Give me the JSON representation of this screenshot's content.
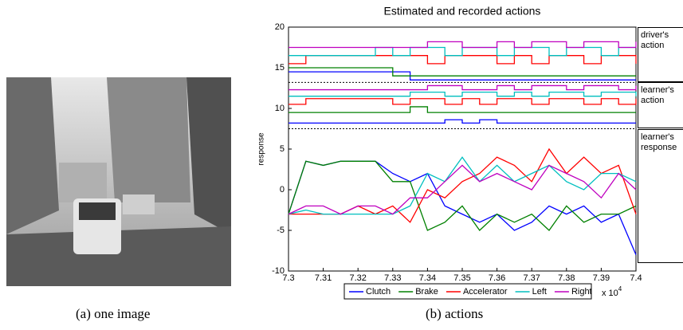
{
  "captions": {
    "left": "(a) one image",
    "right": "(b) actions"
  },
  "chart_data": {
    "type": "line",
    "title": "Estimated and recorded actions",
    "ylabel": "response",
    "x_offset_label": "x 10",
    "x_offset_exp": "4",
    "xlim": [
      73000,
      74000
    ],
    "xticks": [
      {
        "value": 73000,
        "label": "7.3"
      },
      {
        "value": 73100,
        "label": "7.31"
      },
      {
        "value": 73200,
        "label": "7.32"
      },
      {
        "value": 73300,
        "label": "7.33"
      },
      {
        "value": 73400,
        "label": "7.34"
      },
      {
        "value": 73500,
        "label": "7.35"
      },
      {
        "value": 73600,
        "label": "7.36"
      },
      {
        "value": 73700,
        "label": "7.37"
      },
      {
        "value": 73800,
        "label": "7.38"
      },
      {
        "value": 73900,
        "label": "7.39"
      },
      {
        "value": 74000,
        "label": "7.4"
      }
    ],
    "ylim": [
      -10,
      20
    ],
    "yticks": [
      -10,
      -5,
      0,
      5,
      10,
      15,
      20
    ],
    "annotations": [
      "driver's action",
      "learner's action",
      "learner's response"
    ],
    "x": [
      73000,
      73050,
      73100,
      73150,
      73200,
      73250,
      73300,
      73350,
      73400,
      73450,
      73500,
      73550,
      73600,
      73650,
      73700,
      73750,
      73800,
      73850,
      73900,
      73950,
      74000
    ],
    "series": [
      {
        "name": "Clutch",
        "color": "#0000ff",
        "values": [
          -3,
          3.5,
          3,
          3.5,
          3.5,
          3.5,
          2,
          1,
          2,
          -2,
          -3,
          -4,
          -3,
          -5,
          -4,
          -2,
          -3,
          -2,
          -4,
          -3,
          -8
        ]
      },
      {
        "name": "Brake",
        "color": "#008000",
        "values": [
          -3,
          3.5,
          3,
          3.5,
          3.5,
          3.5,
          1,
          1,
          -5,
          -4,
          -2,
          -5,
          -3,
          -4,
          -3,
          -5,
          -2,
          -4,
          -3,
          -3,
          -2
        ]
      },
      {
        "name": "Accelerator",
        "color": "#ff0000",
        "values": [
          -3,
          -3,
          -3,
          -3,
          -2,
          -3,
          -2,
          -4,
          0,
          -1,
          1,
          2,
          4,
          3,
          1,
          5,
          2,
          4,
          2,
          3,
          -3
        ]
      },
      {
        "name": "Left",
        "color": "#00bfbf",
        "values": [
          -3,
          -2.5,
          -3,
          -3,
          -3,
          -3,
          -3,
          -2,
          2,
          1,
          4,
          1,
          3,
          1,
          2,
          3,
          1,
          0,
          2,
          2,
          1
        ]
      },
      {
        "name": "Right",
        "color": "#bf00bf",
        "values": [
          -3,
          -2,
          -2,
          -3,
          -2,
          -2,
          -3,
          -1,
          -1,
          1,
          3,
          1,
          2,
          1,
          0,
          3,
          2,
          1,
          -1,
          2,
          0
        ]
      }
    ],
    "driver_action": [
      {
        "color": "#0000ff",
        "values": [
          14.5,
          14.5,
          14.5,
          14.5,
          14.5,
          14.5,
          14.5,
          13.5,
          13.5,
          13.5,
          13.5,
          13.5,
          13.5,
          13.5,
          13.5,
          13.5,
          13.5,
          13.5,
          13.5,
          13.5,
          13.5
        ]
      },
      {
        "color": "#008000",
        "values": [
          15,
          15,
          15,
          15,
          15,
          15,
          14,
          14,
          14,
          14,
          14,
          14,
          14,
          14,
          14,
          14,
          14,
          14,
          14,
          14,
          14
        ]
      },
      {
        "color": "#ff0000",
        "values": [
          15.5,
          16.5,
          16.5,
          16.5,
          16.5,
          16.5,
          16.5,
          16.5,
          15.5,
          16.5,
          16.5,
          16.5,
          15.5,
          16.5,
          15.5,
          16.5,
          16.5,
          15.5,
          16.5,
          16.5,
          15.5
        ]
      },
      {
        "color": "#00bfbf",
        "values": [
          16.5,
          16.5,
          16.5,
          16.5,
          16.5,
          17.5,
          16.5,
          17.5,
          17.5,
          16.5,
          17.5,
          17.5,
          16.5,
          17.5,
          17.5,
          16.5,
          17.5,
          17.5,
          16.5,
          17.5,
          17.5
        ]
      },
      {
        "color": "#bf00bf",
        "values": [
          17.5,
          17.5,
          17.5,
          17.5,
          17.5,
          17.5,
          17.5,
          17.5,
          18.2,
          18.2,
          17.5,
          17.5,
          18.2,
          17.5,
          18.2,
          18.2,
          17.5,
          18.2,
          18.2,
          17.5,
          18.2
        ]
      }
    ],
    "learner_action": [
      {
        "color": "#0000ff",
        "values": [
          8.2,
          8.2,
          8.2,
          8.2,
          8.2,
          8.2,
          8.2,
          8.2,
          8.2,
          8.6,
          8.2,
          8.6,
          8.2,
          8.2,
          8.2,
          8.2,
          8.2,
          8.2,
          8.2,
          8.2,
          8.2
        ]
      },
      {
        "color": "#008000",
        "values": [
          9.5,
          9.5,
          9.5,
          9.5,
          9.5,
          9.5,
          9.5,
          10.2,
          9.5,
          9.5,
          9.5,
          9.5,
          9.5,
          9.5,
          9.5,
          9.5,
          9.5,
          9.5,
          9.5,
          9.5,
          9.5
        ]
      },
      {
        "color": "#ff0000",
        "values": [
          10.5,
          11.2,
          11.2,
          11.2,
          11.2,
          11.2,
          10.5,
          11.2,
          11.2,
          10.5,
          11.2,
          10.5,
          11.2,
          11.2,
          10.5,
          11.2,
          11.2,
          10.5,
          11.2,
          10.5,
          11.2
        ]
      },
      {
        "color": "#00bfbf",
        "values": [
          11.5,
          11.5,
          11.5,
          11.5,
          11.5,
          11.5,
          11.5,
          12,
          12,
          11.5,
          12,
          12,
          11.5,
          12,
          11.5,
          12,
          12,
          11.5,
          12,
          12,
          11.5
        ]
      },
      {
        "color": "#bf00bf",
        "values": [
          12.3,
          12.3,
          12.3,
          12.3,
          12.3,
          12.3,
          12.3,
          12.3,
          12.8,
          12.8,
          12.3,
          12.3,
          12.8,
          12.3,
          12.8,
          12.8,
          12.3,
          12.8,
          12.8,
          12.3,
          12.8
        ]
      }
    ]
  }
}
